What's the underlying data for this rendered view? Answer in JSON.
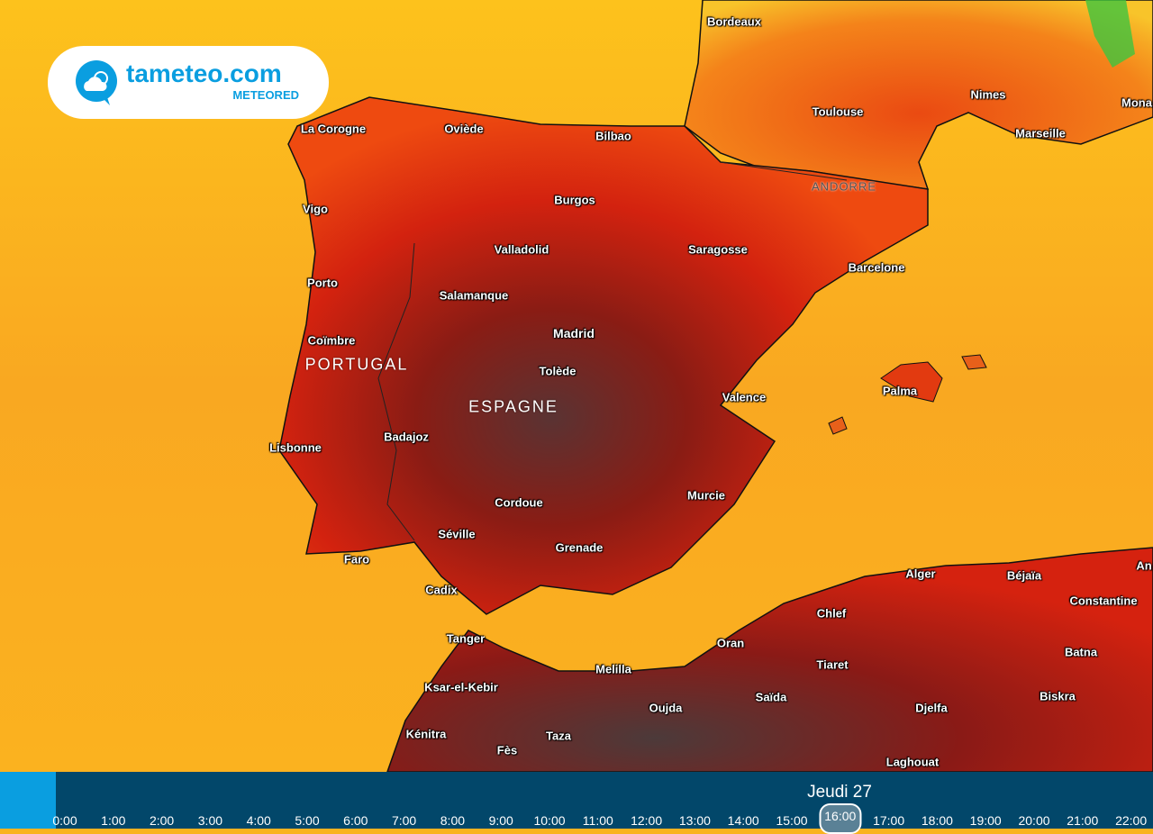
{
  "logo": {
    "name": "tameteo.com",
    "sub": "METEORED"
  },
  "countries": [
    "PORTUGAL",
    "ESPAGNE",
    "ANDORRE"
  ],
  "cities": [
    "Bordeaux",
    "Toulouse",
    "Nimes",
    "Marseille",
    "Mona",
    "La Corogne",
    "Oviède",
    "Bilbao",
    "Burgos",
    "Vigo",
    "Valladolid",
    "Saragosse",
    "Barcelone",
    "Porto",
    "Salamanque",
    "Madrid",
    "Coïmbre",
    "Tolède",
    "Palma",
    "Valence",
    "Badajoz",
    "Lisbonne",
    "Cordoue",
    "Murcie",
    "Séville",
    "Grenade",
    "Faro",
    "Cadix",
    "Alger",
    "Béjaïa",
    "Constantine",
    "An",
    "Tanger",
    "Chlef",
    "Oran",
    "Melilla",
    "Tiaret",
    "Batna",
    "Ksar-el-Kebir",
    "Saïda",
    "Biskra",
    "Oujda",
    "Djelfa",
    "Kénitra",
    "Taza",
    "Fès",
    "Laghouat"
  ],
  "timeline": {
    "day": "Jeudi 27",
    "selected": "16:00",
    "hours": [
      "0:00",
      "1:00",
      "2:00",
      "3:00",
      "4:00",
      "5:00",
      "6:00",
      "7:00",
      "8:00",
      "9:00",
      "10:00",
      "11:00",
      "12:00",
      "13:00",
      "14:00",
      "15:00",
      "16:00",
      "17:00",
      "18:00",
      "19:00",
      "20:00",
      "21:00",
      "22:00"
    ]
  },
  "colors": {
    "sea_warm": "#f9b320",
    "land_hot": "#d8200f",
    "land_extreme": "#4a3535",
    "timeline_bg": "#02476a",
    "brand": "#0a9ee0"
  }
}
